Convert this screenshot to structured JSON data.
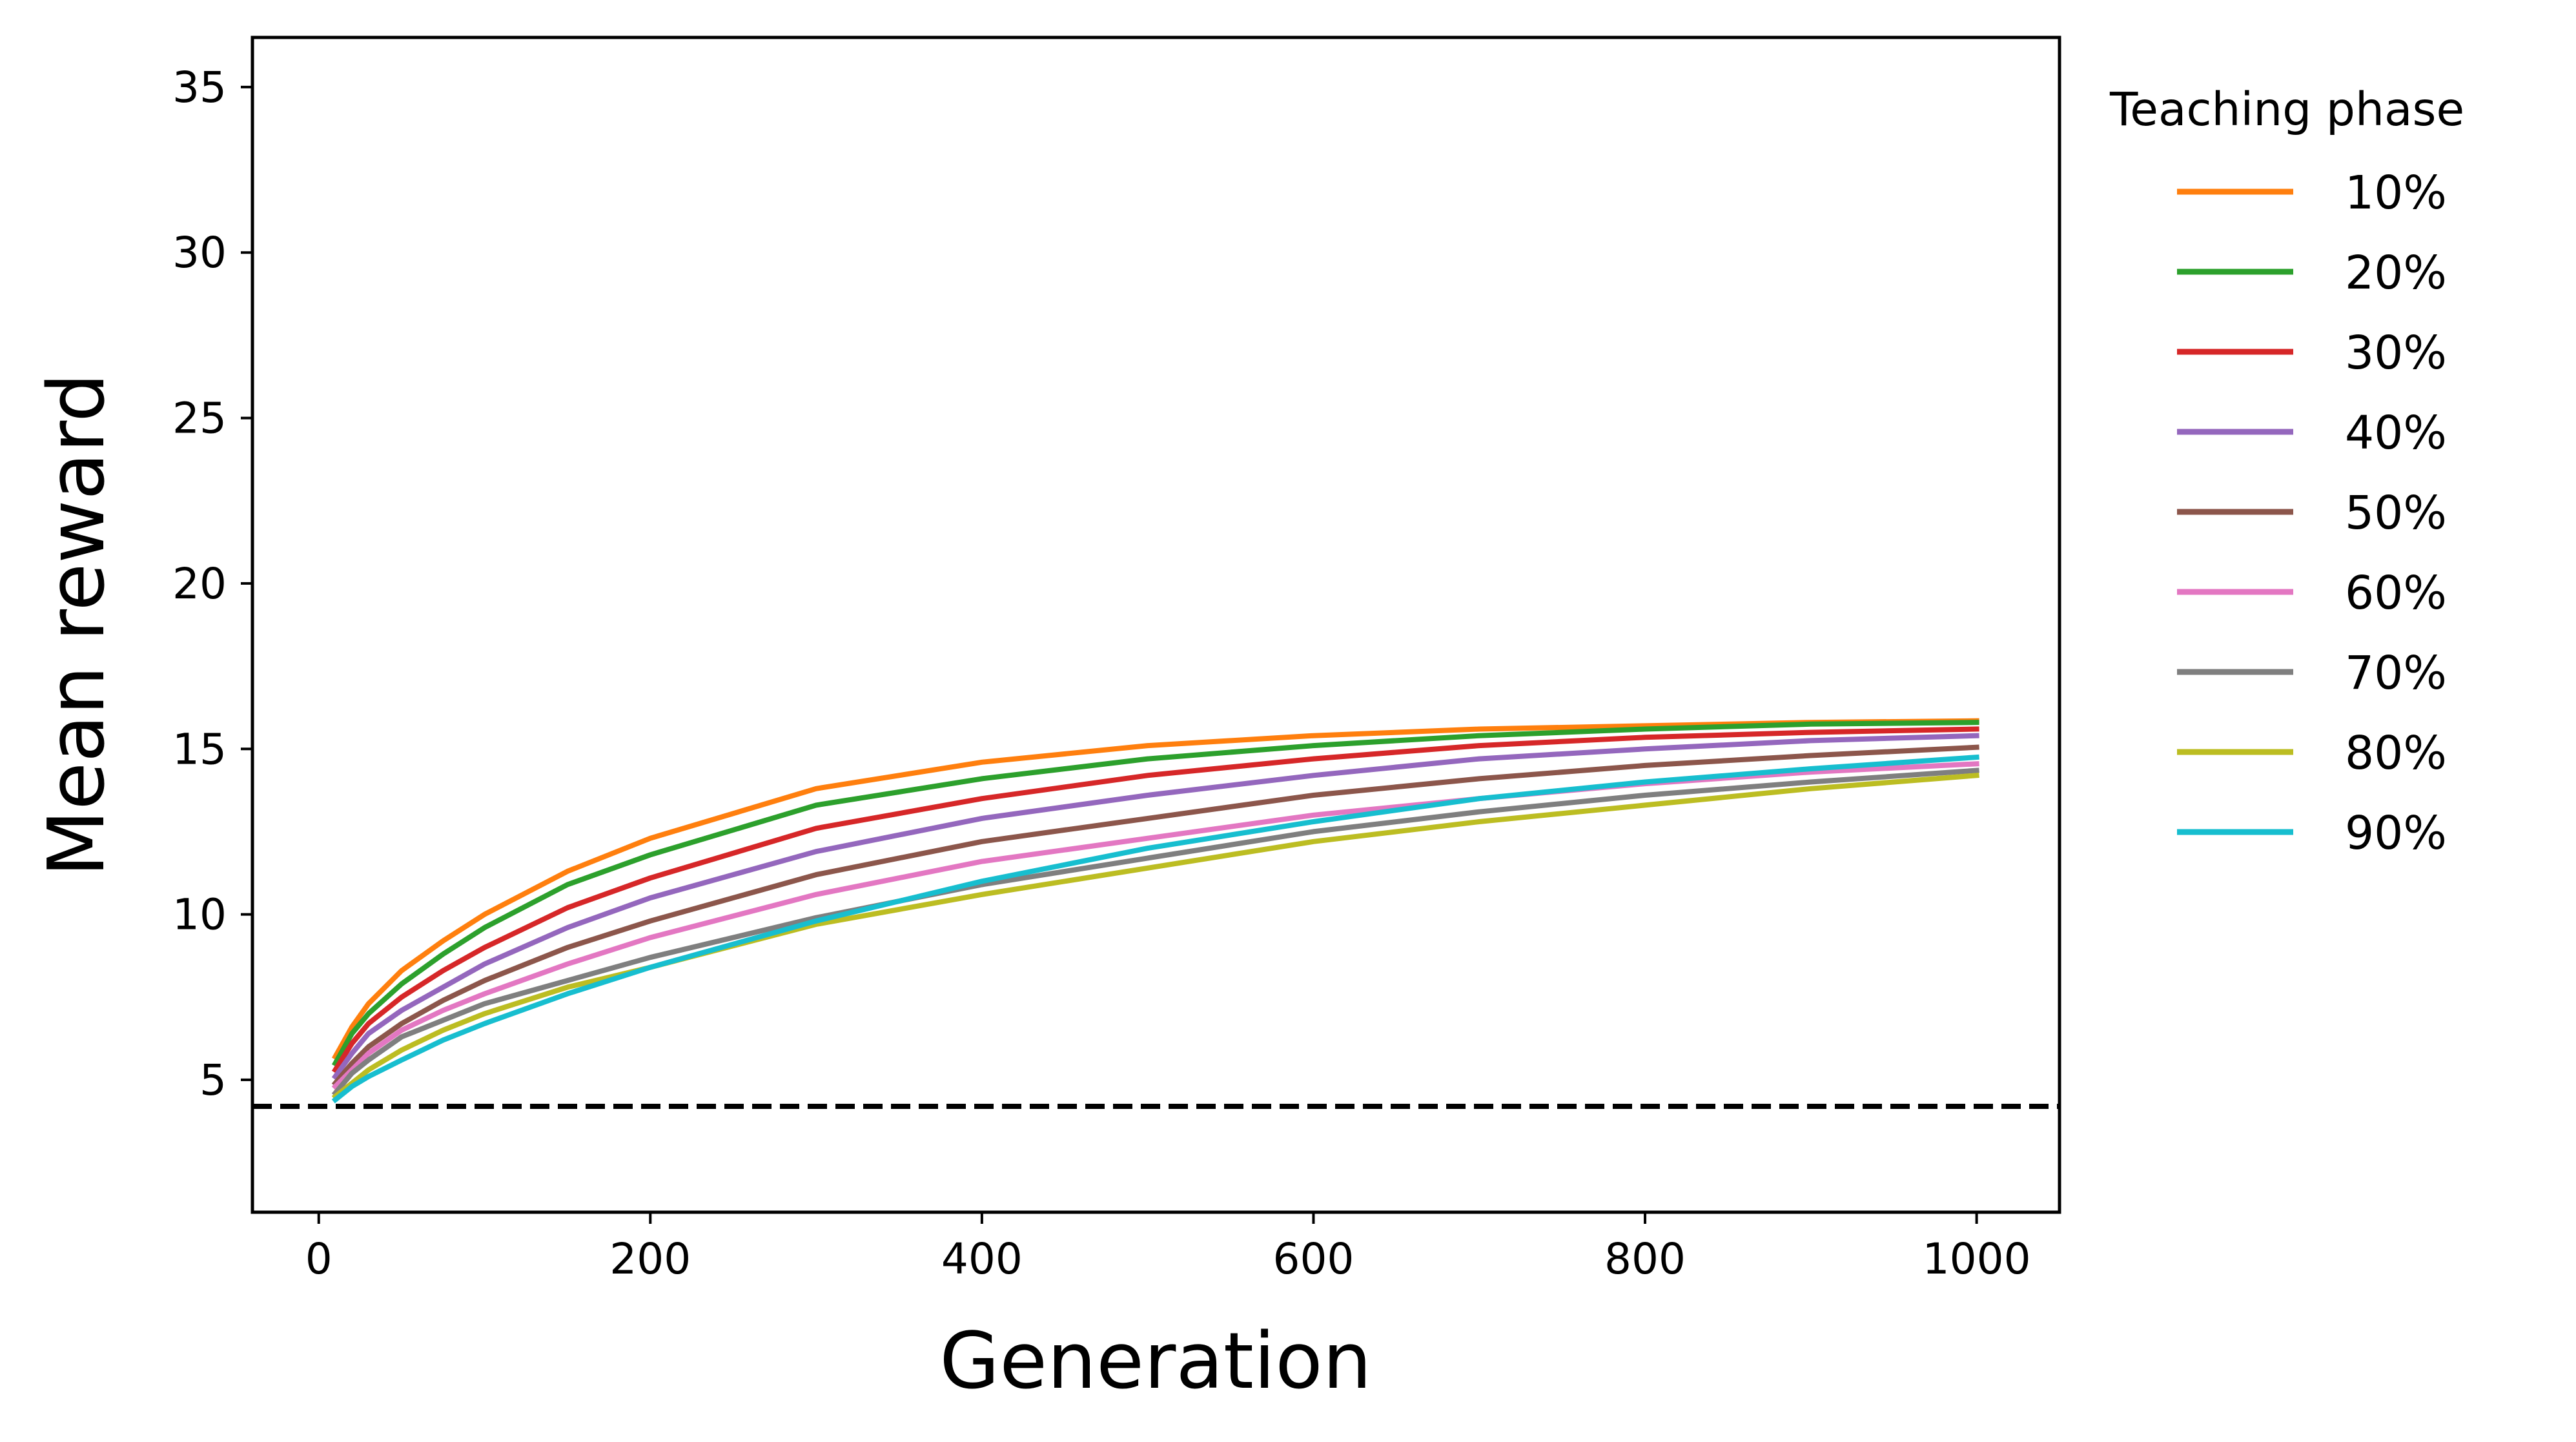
{
  "chart_data": {
    "type": "line",
    "xlabel": "Generation",
    "ylabel": "Mean reward",
    "xlim": [
      -40,
      1050
    ],
    "ylim": [
      1,
      36.5
    ],
    "xticks": [
      0,
      200,
      400,
      600,
      800,
      1000
    ],
    "yticks": [
      5,
      10,
      15,
      20,
      25,
      30,
      35
    ],
    "grid": false,
    "legend": {
      "title": "Teaching phase",
      "placement": "outside-right"
    },
    "baseline": {
      "y": 4.2,
      "style": "dashed",
      "color": "#000000"
    },
    "x": [
      10,
      20,
      30,
      50,
      75,
      100,
      150,
      200,
      300,
      400,
      500,
      600,
      700,
      800,
      900,
      1000
    ],
    "series": [
      {
        "name": "10%",
        "color": "#ff7f0e",
        "values": [
          5.7,
          6.6,
          7.3,
          8.3,
          9.2,
          10.0,
          11.3,
          12.3,
          13.8,
          14.6,
          15.1,
          15.4,
          15.6,
          15.7,
          15.8,
          15.85
        ]
      },
      {
        "name": "20%",
        "color": "#2ca02c",
        "values": [
          5.5,
          6.4,
          7.0,
          7.9,
          8.8,
          9.6,
          10.9,
          11.8,
          13.3,
          14.1,
          14.7,
          15.1,
          15.4,
          15.6,
          15.75,
          15.8
        ]
      },
      {
        "name": "30%",
        "color": "#d62728",
        "values": [
          5.3,
          6.1,
          6.7,
          7.5,
          8.3,
          9.0,
          10.2,
          11.1,
          12.6,
          13.5,
          14.2,
          14.7,
          15.1,
          15.35,
          15.5,
          15.6
        ]
      },
      {
        "name": "40%",
        "color": "#9467bd",
        "values": [
          5.1,
          5.8,
          6.4,
          7.1,
          7.8,
          8.5,
          9.6,
          10.5,
          11.9,
          12.9,
          13.6,
          14.2,
          14.7,
          15.0,
          15.25,
          15.4
        ]
      },
      {
        "name": "50%",
        "color": "#8c564b",
        "values": [
          4.9,
          5.5,
          6.0,
          6.7,
          7.4,
          8.0,
          9.0,
          9.8,
          11.2,
          12.2,
          12.9,
          13.6,
          14.1,
          14.5,
          14.8,
          15.05
        ]
      },
      {
        "name": "60%",
        "color": "#e377c2",
        "values": [
          4.8,
          5.3,
          5.8,
          6.5,
          7.1,
          7.6,
          8.5,
          9.3,
          10.6,
          11.6,
          12.3,
          13.0,
          13.5,
          13.95,
          14.3,
          14.55
        ]
      },
      {
        "name": "70%",
        "color": "#7f7f7f",
        "values": [
          4.6,
          5.2,
          5.6,
          6.3,
          6.8,
          7.3,
          8.0,
          8.7,
          9.9,
          10.9,
          11.7,
          12.5,
          13.1,
          13.6,
          14.0,
          14.35
        ]
      },
      {
        "name": "80%",
        "color": "#bcbd22",
        "values": [
          4.5,
          4.9,
          5.3,
          5.9,
          6.5,
          7.0,
          7.8,
          8.4,
          9.7,
          10.6,
          11.4,
          12.2,
          12.8,
          13.3,
          13.8,
          14.2
        ]
      },
      {
        "name": "90%",
        "color": "#17becf",
        "values": [
          4.4,
          4.8,
          5.1,
          5.6,
          6.2,
          6.7,
          7.6,
          8.4,
          9.8,
          11.0,
          12.0,
          12.8,
          13.5,
          14.0,
          14.4,
          14.75
        ]
      }
    ]
  }
}
